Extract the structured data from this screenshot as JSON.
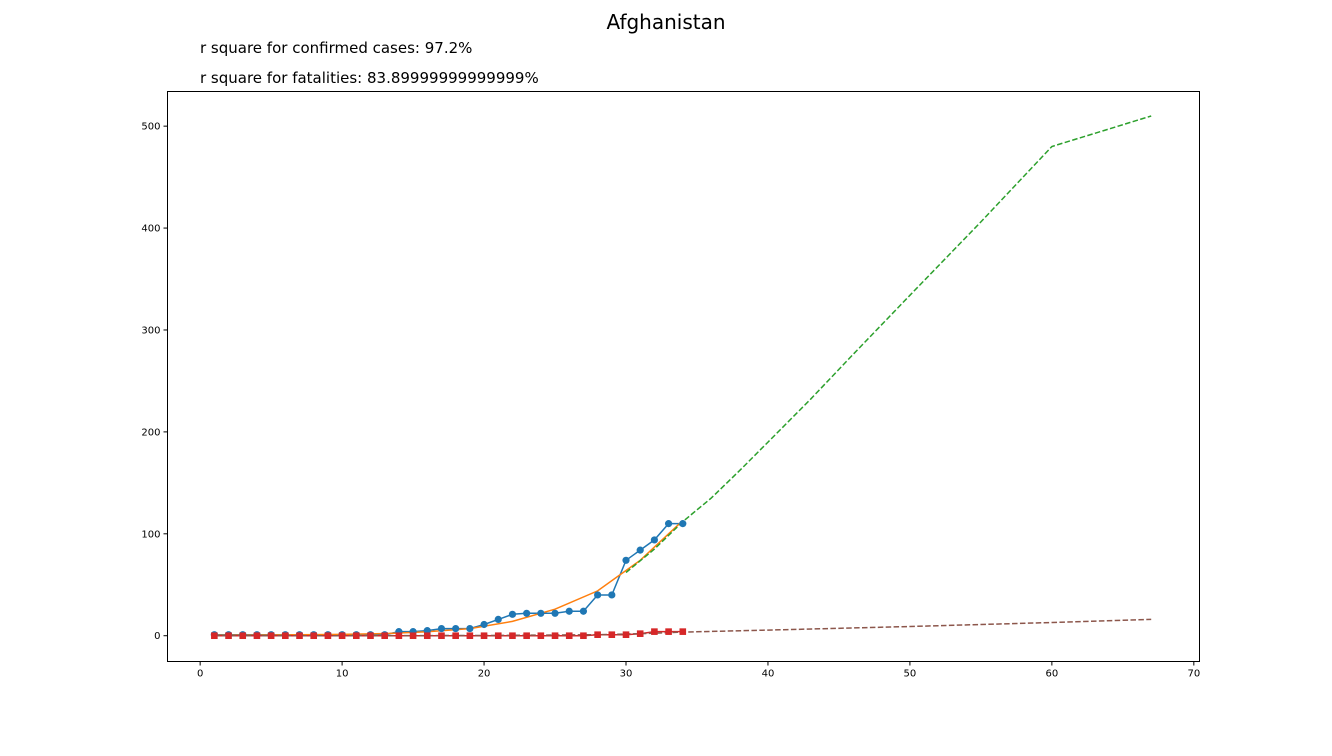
{
  "chart_data": {
    "type": "line",
    "title": "Afghanistan",
    "annotations": [
      "r square for confirmed cases: 97.2%",
      "r square for fatalities: 83.89999999999999%"
    ],
    "xlabel": "",
    "ylabel": "",
    "xlim": [
      -2.3,
      70.4
    ],
    "ylim": [
      -25.3,
      534
    ],
    "xticks": [
      0,
      10,
      20,
      30,
      40,
      50,
      60,
      70
    ],
    "yticks": [
      0,
      100,
      200,
      300,
      400,
      500
    ],
    "grid": false,
    "colors": {
      "confirmed": "#1f77b4",
      "confirmed_fit": "#ff7f0e",
      "confirmed_projection": "#2ca02c",
      "fatalities": "#d62728",
      "fatalities_projection": "#8c564b"
    },
    "series": [
      {
        "key": "confirmed",
        "style": "line-marker-circle",
        "x": [
          1,
          2,
          3,
          4,
          5,
          6,
          7,
          8,
          9,
          10,
          11,
          12,
          13,
          14,
          15,
          16,
          17,
          18,
          19,
          20,
          21,
          22,
          23,
          24,
          25,
          26,
          27,
          28,
          29,
          30,
          31,
          32,
          33,
          34
        ],
        "values": [
          1,
          1,
          1,
          1,
          1,
          1,
          1,
          1,
          1,
          1,
          1,
          1,
          1,
          4,
          4,
          5,
          7,
          7,
          7,
          11,
          16,
          21,
          22,
          22,
          22,
          24,
          24,
          40,
          40,
          74,
          84,
          94,
          110,
          110
        ]
      },
      {
        "key": "confirmed_fit",
        "style": "solid",
        "x": [
          1,
          4,
          7,
          10,
          13,
          16,
          19,
          22,
          25,
          28,
          31,
          34
        ],
        "values": [
          0.5,
          0.6,
          0.9,
          1.3,
          2.1,
          3.8,
          7,
          14,
          26,
          44,
          74,
          113
        ]
      },
      {
        "key": "confirmed_projection",
        "style": "dashed",
        "x": [
          30,
          32,
          34,
          36,
          38,
          40,
          43,
          46,
          50,
          55,
          60,
          67
        ],
        "values": [
          62,
          85,
          112,
          135,
          162,
          190,
          232,
          276,
          334,
          406,
          480,
          510
        ]
      },
      {
        "key": "fatalities",
        "style": "line-marker-square",
        "x": [
          1,
          2,
          3,
          4,
          5,
          6,
          7,
          8,
          9,
          10,
          11,
          12,
          13,
          14,
          15,
          16,
          17,
          18,
          19,
          20,
          21,
          22,
          23,
          24,
          25,
          26,
          27,
          28,
          29,
          30,
          31,
          32,
          33,
          34
        ],
        "values": [
          0,
          0,
          0,
          0,
          0,
          0,
          0,
          0,
          0,
          0,
          0,
          0,
          0,
          0,
          0,
          0,
          0,
          0,
          0,
          0,
          0,
          0,
          0,
          0,
          0,
          0,
          0,
          1,
          1,
          1,
          2,
          4,
          4,
          4
        ]
      },
      {
        "key": "fatalities_projection",
        "style": "dashed",
        "x": [
          1,
          10,
          20,
          28,
          31,
          34,
          40,
          50,
          60,
          67
        ],
        "values": [
          0,
          0,
          0.2,
          1,
          2,
          3.5,
          5.5,
          9,
          13,
          16
        ]
      }
    ]
  }
}
